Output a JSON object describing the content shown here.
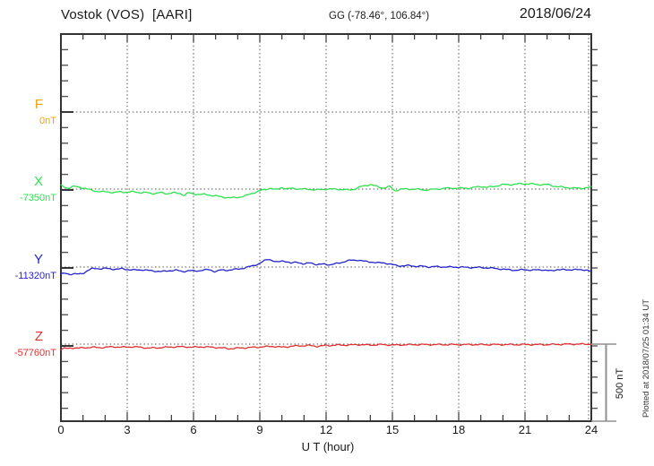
{
  "header": {
    "title": "Vostok (VOS)  [AARI]",
    "coords": "GG (-78.46°, 106.84°)",
    "date": "2018/06/24"
  },
  "axis": {
    "x_label": "U T (hour)",
    "x_ticks": [
      "0",
      "3",
      "6",
      "9",
      "12",
      "15",
      "18",
      "21",
      "24"
    ]
  },
  "scale_bar": {
    "label": "500 nT"
  },
  "plotted_at": "Plotted at 2018/07/25 01:34 UT",
  "chart_data": {
    "type": "line",
    "title": "Vostok (VOS) [AARI] magnetogram, 2018/06/24",
    "xlabel": "U T (hour)",
    "x_range": [
      0,
      24
    ],
    "x_major_ticks": [
      0,
      3,
      6,
      9,
      12,
      15,
      18,
      21,
      24
    ],
    "x_minor_tick_step_hours": 1,
    "y_minor_tick_step_nT": 100,
    "grid": "dotted",
    "scale_nT_per_division": 500,
    "channels": [
      {
        "name": "F",
        "base_label": "0nT",
        "baseline_nT": 0,
        "color": "#f0a000",
        "points": []
      },
      {
        "name": "X",
        "base_label": "-7350nT",
        "baseline_nT": -7350,
        "color": "#2ee04e",
        "points": [
          [
            0,
            23
          ],
          [
            0.3,
            6
          ],
          [
            0.6,
            17
          ],
          [
            0.9,
            11
          ],
          [
            1.2,
            0
          ],
          [
            1.5,
            -11
          ],
          [
            1.8,
            -17
          ],
          [
            2.1,
            -17
          ],
          [
            2.4,
            -23
          ],
          [
            2.7,
            -17
          ],
          [
            3,
            -20
          ],
          [
            3.3,
            -17
          ],
          [
            3.6,
            -23
          ],
          [
            3.9,
            -23
          ],
          [
            4.2,
            -29
          ],
          [
            4.5,
            -23
          ],
          [
            4.8,
            -29
          ],
          [
            5.1,
            -23
          ],
          [
            5.4,
            -29
          ],
          [
            5.6,
            -40
          ],
          [
            5.75,
            -23
          ],
          [
            5.9,
            -29
          ],
          [
            6.2,
            -34
          ],
          [
            6.5,
            -34
          ],
          [
            6.8,
            -40
          ],
          [
            7.1,
            -46
          ],
          [
            7.4,
            -52
          ],
          [
            7.7,
            -57
          ],
          [
            8,
            -52
          ],
          [
            8.3,
            -46
          ],
          [
            8.6,
            -29
          ],
          [
            8.9,
            -17
          ],
          [
            9.1,
            -6
          ],
          [
            9.3,
            0
          ],
          [
            9.5,
            6
          ],
          [
            9.7,
            -6
          ],
          [
            10,
            11
          ],
          [
            10.2,
            0
          ],
          [
            10.5,
            6
          ],
          [
            10.8,
            0
          ],
          [
            11.2,
            0
          ],
          [
            11.5,
            -6
          ],
          [
            12,
            0
          ],
          [
            12.5,
            0
          ],
          [
            13,
            -6
          ],
          [
            13.3,
            0
          ],
          [
            13.6,
            17
          ],
          [
            14,
            29
          ],
          [
            14.3,
            17
          ],
          [
            14.6,
            6
          ],
          [
            14.9,
            17
          ],
          [
            15.1,
            -11
          ],
          [
            15.4,
            0
          ],
          [
            16,
            0
          ],
          [
            16.5,
            -6
          ],
          [
            17,
            0
          ],
          [
            17.5,
            6
          ],
          [
            18,
            6
          ],
          [
            18.5,
            6
          ],
          [
            19,
            17
          ],
          [
            19.3,
            11
          ],
          [
            19.6,
            17
          ],
          [
            20,
            29
          ],
          [
            20.4,
            29
          ],
          [
            20.8,
            34
          ],
          [
            21.2,
            34
          ],
          [
            21.6,
            29
          ],
          [
            22,
            29
          ],
          [
            22.4,
            17
          ],
          [
            22.8,
            11
          ],
          [
            23.2,
            6
          ],
          [
            23.6,
            6
          ],
          [
            24,
            11
          ]
        ]
      },
      {
        "name": "Y",
        "base_label": "-11320nT",
        "baseline_nT": -11320,
        "color": "#2424cc",
        "points": [
          [
            0,
            -46
          ],
          [
            0.2,
            -40
          ],
          [
            0.4,
            -46
          ],
          [
            0.6,
            -43
          ],
          [
            0.8,
            -46
          ],
          [
            1,
            -40
          ],
          [
            1.2,
            -23
          ],
          [
            1.4,
            -11
          ],
          [
            1.6,
            -9
          ],
          [
            1.8,
            -11
          ],
          [
            2,
            -9
          ],
          [
            2.2,
            -11
          ],
          [
            2.5,
            -14
          ],
          [
            2.8,
            -11
          ],
          [
            3.1,
            -17
          ],
          [
            3.4,
            -20
          ],
          [
            3.7,
            -17
          ],
          [
            4,
            -23
          ],
          [
            4.3,
            -26
          ],
          [
            4.6,
            -29
          ],
          [
            4.9,
            -23
          ],
          [
            5.2,
            -20
          ],
          [
            5.5,
            -29
          ],
          [
            5.8,
            -23
          ],
          [
            6.1,
            -26
          ],
          [
            6.4,
            -20
          ],
          [
            6.7,
            -17
          ],
          [
            7,
            -29
          ],
          [
            7.2,
            -20
          ],
          [
            7.5,
            -20
          ],
          [
            7.8,
            -17
          ],
          [
            8.1,
            -11
          ],
          [
            8.4,
            -3
          ],
          [
            8.7,
            9
          ],
          [
            9,
            23
          ],
          [
            9.2,
            40
          ],
          [
            9.4,
            52
          ],
          [
            9.6,
            40
          ],
          [
            9.8,
            29
          ],
          [
            10,
            40
          ],
          [
            10.2,
            37
          ],
          [
            10.4,
            23
          ],
          [
            10.7,
            34
          ],
          [
            11,
            17
          ],
          [
            11.3,
            29
          ],
          [
            11.6,
            14
          ],
          [
            11.9,
            20
          ],
          [
            12.2,
            14
          ],
          [
            12.5,
            23
          ],
          [
            12.8,
            34
          ],
          [
            13.1,
            43
          ],
          [
            13.4,
            46
          ],
          [
            13.7,
            37
          ],
          [
            14,
            34
          ],
          [
            14.3,
            26
          ],
          [
            14.6,
            29
          ],
          [
            14.9,
            17
          ],
          [
            15.2,
            11
          ],
          [
            15.5,
            6
          ],
          [
            15.8,
            11
          ],
          [
            16.1,
            3
          ],
          [
            16.4,
            6
          ],
          [
            16.7,
            0
          ],
          [
            17,
            3
          ],
          [
            17.5,
            0
          ],
          [
            18,
            0
          ],
          [
            18.5,
            -3
          ],
          [
            19,
            -3
          ],
          [
            19.4,
            -6
          ],
          [
            19.8,
            -11
          ],
          [
            20.2,
            -17
          ],
          [
            20.6,
            -20
          ],
          [
            21,
            -17
          ],
          [
            21.4,
            -20
          ],
          [
            21.8,
            -17
          ],
          [
            22.2,
            -26
          ],
          [
            22.5,
            -14
          ],
          [
            22.9,
            -20
          ],
          [
            23.2,
            -14
          ],
          [
            23.5,
            -20
          ],
          [
            23.8,
            -17
          ],
          [
            24,
            -29
          ]
        ]
      },
      {
        "name": "Z",
        "base_label": "-57760nT",
        "baseline_nT": -57760,
        "color": "#e03030",
        "points": [
          [
            0,
            -34
          ],
          [
            0.15,
            -26
          ],
          [
            0.3,
            -29
          ],
          [
            0.5,
            -23
          ],
          [
            0.8,
            -26
          ],
          [
            1.1,
            -23
          ],
          [
            1.4,
            -20
          ],
          [
            1.7,
            -23
          ],
          [
            2,
            -20
          ],
          [
            2.4,
            -17
          ],
          [
            2.8,
            -20
          ],
          [
            3.2,
            -17
          ],
          [
            3.6,
            -20
          ],
          [
            4,
            -26
          ],
          [
            4.4,
            -23
          ],
          [
            4.8,
            -20
          ],
          [
            5.2,
            -17
          ],
          [
            5.6,
            -17
          ],
          [
            6,
            -20
          ],
          [
            6.4,
            -17
          ],
          [
            6.8,
            -20
          ],
          [
            7.2,
            -23
          ],
          [
            7.6,
            -29
          ],
          [
            8,
            -26
          ],
          [
            8.4,
            -23
          ],
          [
            8.8,
            -20
          ],
          [
            9.2,
            -17
          ],
          [
            9.6,
            -14
          ],
          [
            10,
            -20
          ],
          [
            10.4,
            -14
          ],
          [
            10.8,
            -11
          ],
          [
            11.2,
            -9
          ],
          [
            11.6,
            -14
          ],
          [
            12,
            -9
          ],
          [
            12.5,
            -6
          ],
          [
            13,
            -6
          ],
          [
            13.5,
            -3
          ],
          [
            14,
            -6
          ],
          [
            14.5,
            -3
          ],
          [
            15,
            -6
          ],
          [
            16,
            -3
          ],
          [
            17,
            -3
          ],
          [
            18,
            -3
          ],
          [
            19,
            -3
          ],
          [
            20,
            -3
          ],
          [
            21,
            -3
          ],
          [
            22,
            -3
          ],
          [
            23,
            0
          ],
          [
            24,
            0
          ]
        ]
      }
    ]
  }
}
